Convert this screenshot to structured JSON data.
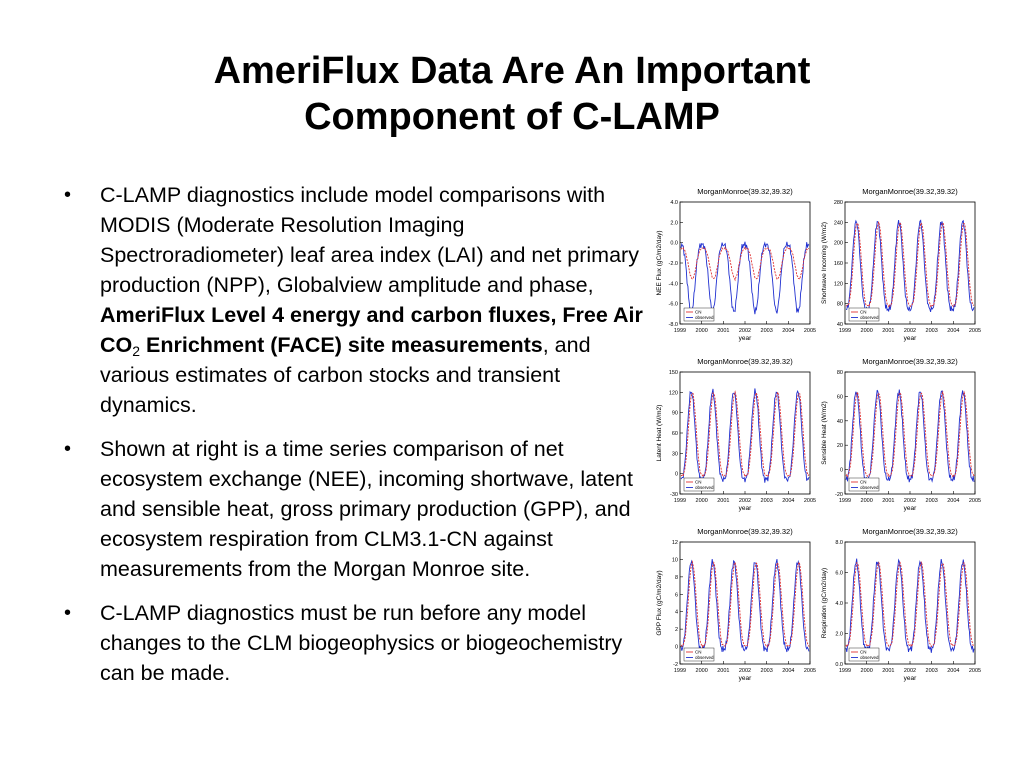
{
  "slide": {
    "title_line1": "AmeriFlux Data Are An Important",
    "title_line2": "Component of C-LAMP"
  },
  "bullets": {
    "b1_a": "C-LAMP diagnostics include model comparisons with MODIS (Moderate Resolution Imaging Spectroradiometer) leaf area index (LAI) and net primary production (NPP), Globalview amplitude and phase, ",
    "b1_bold1": "AmeriFlux Level 4 energy and carbon fluxes, Free Air CO",
    "b1_sub": "2",
    "b1_bold2": " Enrichment (FACE) site measurements",
    "b1_c": ", and various estimates of carbon stocks and transient dynamics.",
    "b2": "Shown at right is a time series comparison of net ecosystem exchange (NEE), incoming shortwave, latent and sensible heat, gross primary production (GPP), and ecosystem respiration from CLM3.1-CN against measurements from the Morgan Monroe site.",
    "b3": "C-LAMP diagnostics must be run before any model changes to the CLM biogeophysics or biogeochemistry can be made."
  },
  "chart_data": [
    {
      "type": "line",
      "title": "MorganMonroe(39.32,39.32)",
      "xlabel": "year",
      "ylabel": "NEE Flux (gC/m2/day)",
      "xlim": [
        1999,
        2005
      ],
      "ylim": [
        -8,
        4
      ],
      "yticks": [
        "4.0",
        "2.0",
        "0.0",
        "-2.0",
        "-4.0",
        "-6.0",
        "-8.0"
      ],
      "xticks": [
        "1999",
        "2000",
        "2001",
        "2002",
        "2003",
        "2004",
        "2005"
      ],
      "legend_labels": [
        "CN",
        "observed"
      ],
      "series_colors": [
        "#e03030",
        "#2030d0"
      ],
      "color_flip": true
    },
    {
      "type": "line",
      "title": "MorganMonroe(39.32,39.32)",
      "xlabel": "year",
      "ylabel": "Shortwave Incoming (W/m2)",
      "xlim": [
        1999,
        2005
      ],
      "ylim": [
        40,
        280
      ],
      "yticks": [
        "280",
        "240",
        "200",
        "160",
        "120",
        "80",
        "40"
      ],
      "xticks": [
        "1999",
        "2000",
        "2001",
        "2002",
        "2003",
        "2004",
        "2005"
      ],
      "legend_labels": [
        "CN",
        "observed"
      ],
      "series_colors": [
        "#e03030",
        "#2030d0"
      ],
      "color_flip": false
    },
    {
      "type": "line",
      "title": "MorganMonroe(39.32,39.32)",
      "xlabel": "year",
      "ylabel": "Latent Heat (W/m2)",
      "xlim": [
        1999,
        2005
      ],
      "ylim": [
        -30,
        150
      ],
      "yticks": [
        "150",
        "120",
        "90",
        "60",
        "30",
        "0",
        "-30"
      ],
      "xticks": [
        "1999",
        "2000",
        "2001",
        "2002",
        "2003",
        "2004",
        "2005"
      ],
      "legend_labels": [
        "CN",
        "observed"
      ],
      "series_colors": [
        "#e03030",
        "#2030d0"
      ],
      "color_flip": false
    },
    {
      "type": "line",
      "title": "MorganMonroe(39.32,39.32)",
      "xlabel": "year",
      "ylabel": "Sensible Heat (W/m2)",
      "xlim": [
        1999,
        2005
      ],
      "ylim": [
        -20,
        80
      ],
      "yticks": [
        "80",
        "60",
        "40",
        "20",
        "0",
        "-20"
      ],
      "xticks": [
        "1999",
        "2000",
        "2001",
        "2002",
        "2003",
        "2004",
        "2005"
      ],
      "legend_labels": [
        "CN",
        "observed"
      ],
      "series_colors": [
        "#e03030",
        "#2030d0"
      ],
      "color_flip": false
    },
    {
      "type": "line",
      "title": "MorganMonroe(39.32,39.32)",
      "xlabel": "year",
      "ylabel": "GPP Flux (gC/m2/day)",
      "xlim": [
        1999,
        2005
      ],
      "ylim": [
        -2,
        12
      ],
      "yticks": [
        "12",
        "10",
        "8",
        "6",
        "4",
        "2",
        "0",
        "-2"
      ],
      "xticks": [
        "1999",
        "2000",
        "2001",
        "2002",
        "2003",
        "2004",
        "2005"
      ],
      "legend_labels": [
        "CN",
        "observed"
      ],
      "series_colors": [
        "#e03030",
        "#2030d0"
      ],
      "color_flip": false
    },
    {
      "type": "line",
      "title": "MorganMonroe(39.32,39.32)",
      "xlabel": "year",
      "ylabel": "Respiration (gC/m2/day)",
      "xlim": [
        1999,
        2005
      ],
      "ylim": [
        0,
        8
      ],
      "yticks": [
        "8.0",
        "6.0",
        "4.0",
        "2.0",
        "0.0"
      ],
      "xticks": [
        "1999",
        "2000",
        "2001",
        "2002",
        "2003",
        "2004",
        "2005"
      ],
      "legend_labels": [
        "CN",
        "observed"
      ],
      "series_colors": [
        "#e03030",
        "#2030d0"
      ],
      "color_flip": false
    }
  ]
}
